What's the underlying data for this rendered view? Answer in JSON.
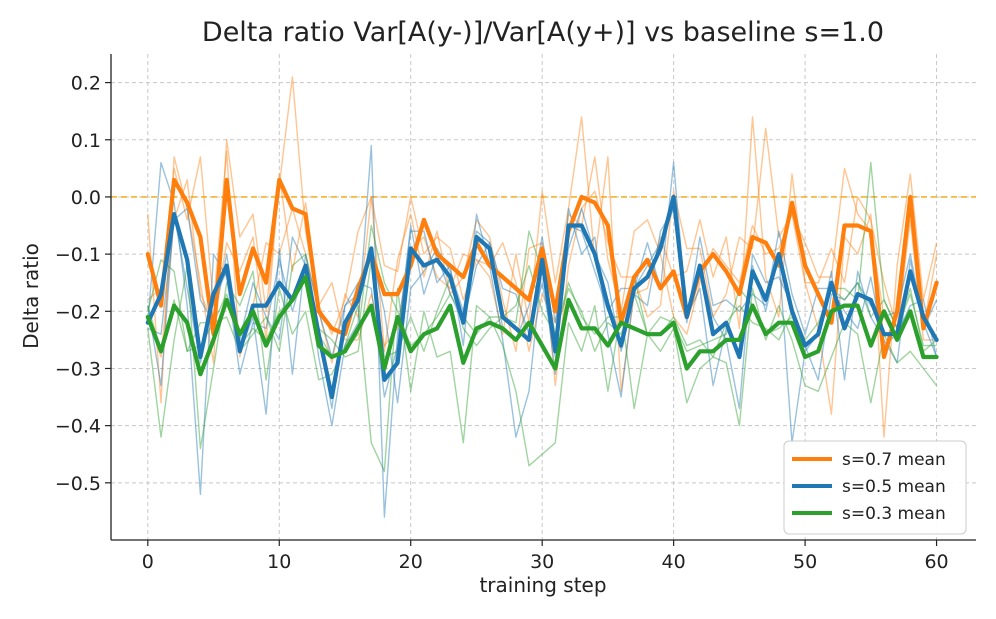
{
  "chart_data": {
    "type": "line",
    "title": "Delta ratio Var[A(y-)]/Var[A(y+)] vs baseline s=1.0",
    "xlabel": "training step",
    "ylabel": "Delta ratio",
    "xlim": [
      -2.8,
      63.0
    ],
    "ylim": [
      -0.6,
      0.25
    ],
    "x_ticks": [
      0,
      10,
      20,
      30,
      40,
      50,
      60
    ],
    "x_tick_labels": [
      "0",
      "10",
      "20",
      "30",
      "40",
      "50",
      "60"
    ],
    "y_ticks": [
      0.2,
      0.1,
      0.0,
      -0.1,
      -0.2,
      -0.3,
      -0.4,
      -0.5
    ],
    "y_tick_labels": [
      "0.2",
      "0.1",
      "0.0",
      "−0.1",
      "−0.2",
      "−0.3",
      "−0.4",
      "−0.5"
    ],
    "grid": true,
    "legend_position": "bottom-right",
    "baseline": {
      "y": 0.0,
      "color": "#f5b229",
      "style": "dashed"
    },
    "x": [
      0,
      1,
      2,
      3,
      4,
      5,
      6,
      7,
      8,
      9,
      10,
      11,
      12,
      13,
      14,
      15,
      16,
      17,
      18,
      19,
      20,
      21,
      22,
      23,
      24,
      25,
      26,
      27,
      28,
      29,
      30,
      31,
      32,
      33,
      34,
      35,
      36,
      37,
      38,
      39,
      40,
      41,
      42,
      43,
      44,
      45,
      46,
      47,
      48,
      49,
      50,
      51,
      52,
      53,
      54,
      55,
      56,
      57,
      58,
      59,
      60
    ],
    "series": [
      {
        "name": "s=0.7 mean",
        "color": "#ff7f0e",
        "show_in_legend": true,
        "values": [
          -0.1,
          -0.19,
          0.03,
          -0.01,
          -0.07,
          -0.24,
          0.03,
          -0.17,
          -0.09,
          -0.15,
          0.03,
          -0.02,
          -0.03,
          -0.2,
          -0.23,
          -0.24,
          -0.16,
          -0.1,
          -0.17,
          -0.17,
          -0.12,
          -0.04,
          -0.1,
          -0.12,
          -0.14,
          -0.08,
          -0.12,
          -0.14,
          -0.16,
          -0.18,
          -0.09,
          -0.2,
          -0.06,
          0.0,
          -0.01,
          -0.05,
          -0.22,
          -0.14,
          -0.11,
          -0.16,
          -0.13,
          -0.21,
          -0.13,
          -0.1,
          -0.13,
          -0.17,
          -0.07,
          -0.08,
          -0.12,
          -0.01,
          -0.12,
          -0.17,
          -0.22,
          -0.05,
          -0.05,
          -0.06,
          -0.28,
          -0.2,
          0.0,
          -0.23,
          -0.15
        ],
        "runs": [
          [
            -0.03,
            -0.36,
            0.07,
            -0.02,
            -0.15,
            -0.29,
            0.1,
            -0.07,
            -0.03,
            -0.2,
            0.02,
            0.21,
            -0.06,
            -0.19,
            -0.24,
            -0.18,
            -0.06,
            0.0,
            -0.12,
            -0.13,
            0.0,
            -0.1,
            -0.07,
            -0.09,
            -0.18,
            -0.11,
            -0.14,
            -0.24,
            -0.1,
            -0.22,
            0.01,
            -0.15,
            -0.02,
            0.14,
            -0.11,
            0.07,
            -0.34,
            -0.17,
            -0.16,
            -0.07,
            -0.14,
            -0.13,
            -0.04,
            -0.14,
            -0.07,
            -0.23,
            0.14,
            -0.14,
            -0.21,
            0.04,
            -0.15,
            -0.23,
            -0.38,
            -0.07,
            -0.1,
            -0.03,
            -0.42,
            -0.12,
            0.04,
            -0.18,
            -0.08
          ],
          [
            -0.18,
            -0.16,
            0.05,
            -0.04,
            0.07,
            -0.19,
            0.08,
            -0.28,
            -0.19,
            -0.08,
            -0.1,
            -0.02,
            -0.1,
            -0.2,
            -0.29,
            -0.17,
            -0.21,
            0.0,
            -0.27,
            -0.11,
            -0.03,
            -0.14,
            -0.06,
            -0.17,
            -0.14,
            -0.04,
            -0.07,
            -0.18,
            -0.27,
            -0.09,
            -0.08,
            -0.33,
            -0.12,
            -0.02,
            0.01,
            -0.08,
            -0.14,
            -0.14,
            -0.21,
            -0.19,
            0.01,
            -0.09,
            -0.09,
            -0.21,
            -0.17,
            -0.07,
            -0.09,
            0.12,
            -0.07,
            -0.03,
            -0.15,
            -0.15,
            -0.09,
            -0.15,
            0.0,
            -0.04,
            -0.15,
            -0.23,
            -0.04,
            -0.25,
            -0.25
          ],
          [
            -0.21,
            -0.28,
            -0.04,
            0.03,
            -0.17,
            -0.22,
            -0.08,
            -0.13,
            -0.07,
            -0.25,
            0.04,
            -0.13,
            -0.01,
            -0.19,
            -0.15,
            -0.25,
            -0.25,
            -0.17,
            -0.26,
            -0.23,
            -0.09,
            -0.07,
            -0.14,
            -0.16,
            -0.1,
            -0.11,
            -0.12,
            -0.08,
            -0.15,
            -0.27,
            -0.17,
            -0.22,
            -0.03,
            -0.05,
            0.07,
            -0.11,
            -0.2,
            -0.06,
            -0.04,
            -0.1,
            -0.21,
            -0.24,
            -0.15,
            -0.09,
            -0.12,
            -0.15,
            -0.05,
            -0.1,
            -0.09,
            -0.03,
            -0.08,
            -0.14,
            -0.14,
            0.05,
            -0.03,
            -0.06,
            -0.21,
            -0.25,
            -0.01,
            -0.23,
            -0.1
          ]
        ]
      },
      {
        "name": "s=0.5 mean",
        "color": "#1f77b4",
        "show_in_legend": true,
        "values": [
          -0.22,
          -0.17,
          -0.03,
          -0.11,
          -0.28,
          -0.17,
          -0.12,
          -0.27,
          -0.19,
          -0.19,
          -0.15,
          -0.18,
          -0.12,
          -0.24,
          -0.35,
          -0.22,
          -0.18,
          -0.09,
          -0.32,
          -0.29,
          -0.09,
          -0.12,
          -0.11,
          -0.14,
          -0.22,
          -0.07,
          -0.09,
          -0.21,
          -0.23,
          -0.25,
          -0.11,
          -0.27,
          -0.05,
          -0.05,
          -0.1,
          -0.19,
          -0.26,
          -0.16,
          -0.14,
          -0.09,
          0.0,
          -0.21,
          -0.12,
          -0.24,
          -0.22,
          -0.28,
          -0.13,
          -0.18,
          -0.1,
          -0.2,
          -0.26,
          -0.24,
          -0.15,
          -0.23,
          -0.17,
          -0.18,
          -0.24,
          -0.24,
          -0.13,
          -0.21,
          -0.25
        ],
        "runs": [
          [
            -0.22,
            0.06,
            -0.01,
            -0.19,
            -0.52,
            -0.1,
            -0.14,
            -0.31,
            -0.22,
            -0.23,
            -0.11,
            -0.2,
            -0.12,
            -0.28,
            -0.4,
            -0.26,
            -0.22,
            0.09,
            -0.56,
            -0.24,
            -0.06,
            -0.06,
            -0.15,
            -0.12,
            -0.26,
            -0.03,
            -0.12,
            -0.25,
            -0.42,
            -0.34,
            -0.12,
            -0.31,
            -0.02,
            -0.1,
            -0.07,
            -0.24,
            -0.35,
            -0.16,
            -0.08,
            -0.16,
            0.06,
            -0.21,
            -0.16,
            -0.33,
            -0.23,
            -0.27,
            -0.12,
            -0.2,
            -0.1,
            -0.43,
            -0.27,
            -0.24,
            -0.13,
            -0.32,
            -0.13,
            -0.21,
            -0.25,
            -0.29,
            -0.11,
            -0.23,
            -0.18
          ],
          [
            -0.19,
            -0.33,
            -0.03,
            -0.16,
            -0.29,
            -0.18,
            -0.13,
            -0.27,
            -0.21,
            -0.38,
            -0.09,
            -0.31,
            -0.1,
            -0.2,
            -0.28,
            -0.19,
            -0.15,
            -0.16,
            -0.35,
            -0.26,
            -0.05,
            -0.17,
            -0.1,
            -0.17,
            -0.22,
            -0.12,
            -0.08,
            -0.23,
            -0.25,
            -0.19,
            -0.07,
            -0.22,
            -0.09,
            -0.02,
            -0.1,
            -0.15,
            -0.27,
            -0.17,
            -0.19,
            -0.06,
            -0.02,
            -0.21,
            -0.12,
            -0.21,
            -0.25,
            -0.37,
            -0.1,
            -0.15,
            -0.14,
            -0.19,
            -0.26,
            -0.32,
            -0.17,
            -0.18,
            -0.15,
            -0.19,
            -0.21,
            -0.2,
            -0.1,
            -0.22,
            -0.28
          ],
          [
            -0.23,
            -0.24,
            -0.04,
            -0.02,
            -0.18,
            -0.22,
            -0.1,
            -0.25,
            -0.15,
            -0.21,
            -0.25,
            -0.07,
            -0.12,
            -0.24,
            -0.37,
            -0.19,
            -0.17,
            -0.1,
            -0.2,
            -0.36,
            -0.16,
            -0.13,
            -0.09,
            -0.13,
            -0.2,
            -0.06,
            -0.08,
            -0.16,
            -0.17,
            -0.24,
            -0.15,
            -0.28,
            -0.05,
            -0.06,
            -0.13,
            -0.2,
            -0.16,
            -0.16,
            -0.12,
            -0.08,
            -0.02,
            -0.22,
            -0.07,
            -0.19,
            -0.18,
            -0.2,
            -0.17,
            -0.19,
            -0.06,
            -0.17,
            -0.24,
            -0.16,
            -0.16,
            -0.2,
            -0.23,
            -0.14,
            -0.26,
            -0.24,
            -0.19,
            -0.18,
            -0.28
          ]
        ]
      },
      {
        "name": "s=0.3 mean",
        "color": "#2ca02c",
        "show_in_legend": true,
        "values": [
          -0.21,
          -0.27,
          -0.19,
          -0.22,
          -0.31,
          -0.25,
          -0.18,
          -0.24,
          -0.2,
          -0.26,
          -0.21,
          -0.18,
          -0.14,
          -0.26,
          -0.28,
          -0.27,
          -0.23,
          -0.19,
          -0.3,
          -0.21,
          -0.27,
          -0.24,
          -0.23,
          -0.19,
          -0.29,
          -0.23,
          -0.22,
          -0.23,
          -0.25,
          -0.22,
          -0.26,
          -0.3,
          -0.18,
          -0.23,
          -0.23,
          -0.26,
          -0.22,
          -0.23,
          -0.24,
          -0.24,
          -0.22,
          -0.3,
          -0.27,
          -0.27,
          -0.25,
          -0.25,
          -0.19,
          -0.24,
          -0.22,
          -0.22,
          -0.28,
          -0.27,
          -0.2,
          -0.19,
          -0.19,
          -0.26,
          -0.2,
          -0.25,
          -0.2,
          -0.28,
          -0.28
        ],
        "runs": [
          [
            -0.23,
            -0.42,
            -0.25,
            -0.12,
            -0.44,
            -0.3,
            -0.15,
            -0.19,
            -0.13,
            -0.32,
            -0.16,
            -0.24,
            -0.2,
            -0.32,
            -0.31,
            -0.26,
            -0.19,
            -0.43,
            -0.48,
            -0.16,
            -0.34,
            -0.2,
            -0.28,
            -0.27,
            -0.43,
            -0.19,
            -0.21,
            -0.26,
            -0.34,
            -0.47,
            -0.45,
            -0.43,
            -0.22,
            -0.27,
            -0.19,
            -0.34,
            -0.2,
            -0.37,
            -0.24,
            -0.27,
            -0.23,
            -0.36,
            -0.3,
            -0.28,
            -0.29,
            -0.4,
            -0.16,
            -0.25,
            -0.19,
            -0.25,
            -0.33,
            -0.34,
            -0.28,
            -0.22,
            -0.24,
            -0.36,
            -0.24,
            -0.29,
            -0.27,
            -0.3,
            -0.33
          ],
          [
            -0.2,
            -0.11,
            -0.13,
            -0.27,
            -0.22,
            -0.22,
            -0.21,
            -0.27,
            -0.24,
            -0.21,
            -0.27,
            -0.12,
            -0.1,
            -0.23,
            -0.25,
            -0.28,
            -0.27,
            -0.11,
            -0.28,
            -0.27,
            -0.21,
            -0.27,
            -0.2,
            -0.14,
            -0.23,
            -0.26,
            -0.23,
            -0.21,
            -0.19,
            -0.12,
            -0.2,
            -0.24,
            -0.16,
            -0.2,
            -0.27,
            -0.22,
            -0.24,
            -0.17,
            -0.24,
            -0.24,
            -0.21,
            -0.26,
            -0.25,
            -0.28,
            -0.22,
            -0.19,
            -0.22,
            -0.23,
            -0.25,
            -0.2,
            -0.25,
            -0.22,
            -0.16,
            -0.18,
            -0.15,
            -0.21,
            -0.18,
            -0.23,
            -0.16,
            -0.27,
            -0.25
          ],
          [
            -0.19,
            -0.27,
            -0.18,
            -0.27,
            -0.26,
            -0.22,
            -0.17,
            -0.26,
            -0.23,
            -0.25,
            -0.2,
            -0.18,
            -0.13,
            -0.24,
            -0.28,
            -0.27,
            -0.24,
            -0.05,
            -0.15,
            -0.2,
            -0.26,
            -0.24,
            -0.21,
            -0.17,
            -0.21,
            -0.24,
            -0.21,
            -0.21,
            -0.22,
            -0.06,
            -0.13,
            -0.24,
            -0.15,
            -0.21,
            -0.24,
            -0.21,
            -0.21,
            -0.14,
            -0.24,
            -0.21,
            -0.22,
            -0.27,
            -0.26,
            -0.25,
            -0.24,
            -0.16,
            -0.19,
            -0.24,
            -0.23,
            -0.21,
            -0.26,
            -0.24,
            -0.16,
            -0.16,
            -0.18,
            0.06,
            -0.18,
            -0.23,
            -0.17,
            -0.26,
            -0.26
          ]
        ]
      }
    ]
  }
}
